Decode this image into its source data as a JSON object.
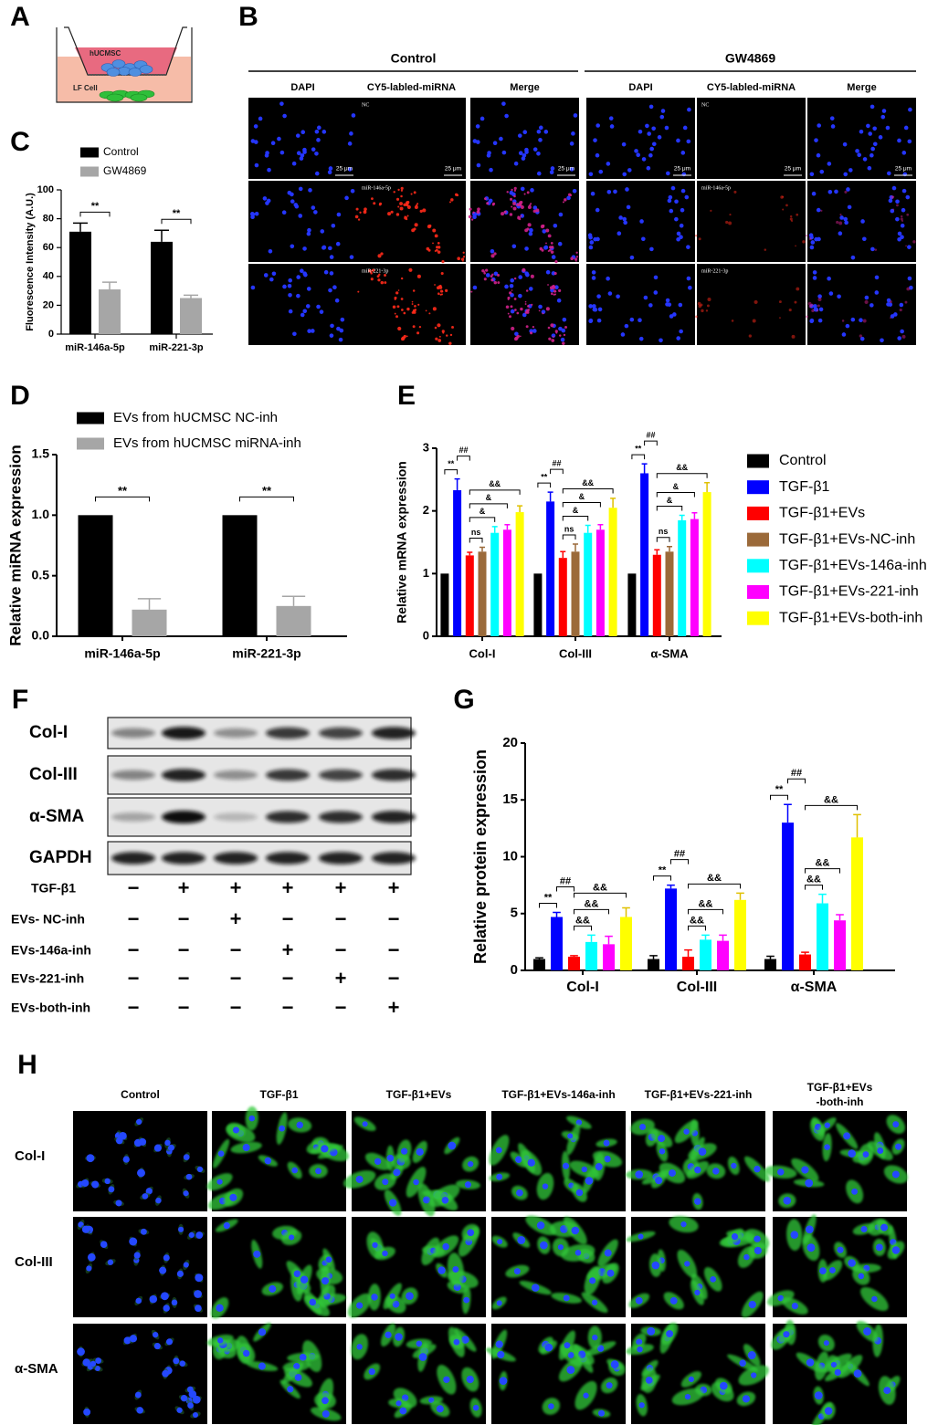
{
  "panel_labels": [
    "A",
    "B",
    "C",
    "D",
    "E",
    "F",
    "G",
    "H"
  ],
  "A": {
    "top_label": "hUCMSC",
    "bottom_label": "LF Cell"
  },
  "B": {
    "groups": [
      {
        "title": "Control",
        "columns": [
          "DAPI",
          "CY5-labled-miRNA",
          "Merge"
        ],
        "rows": [
          "NC",
          "miR-146a-5p",
          "miR-221-3p"
        ]
      },
      {
        "title": "GW4869",
        "columns": [
          "DAPI",
          "CY5-labled-miRNA",
          "Merge"
        ],
        "rows": [
          "NC",
          "miR-146a-5p",
          "miR-221-3p"
        ]
      }
    ],
    "scale_bar": "25 μm"
  },
  "F": {
    "blots": [
      "Col-I",
      "Col-III",
      "α-SMA",
      "GAPDH"
    ],
    "treatments": [
      {
        "label": "TGF-β1",
        "signs": [
          "−",
          "+",
          "+",
          "+",
          "+",
          "+"
        ]
      },
      {
        "label": "EVs- NC-inh",
        "signs": [
          "−",
          "−",
          "+",
          "−",
          "−",
          "−"
        ]
      },
      {
        "label": "EVs-146a-inh",
        "signs": [
          "−",
          "−",
          "−",
          "+",
          "−",
          "−"
        ]
      },
      {
        "label": "EVs-221-inh",
        "signs": [
          "−",
          "−",
          "−",
          "−",
          "+",
          "−"
        ]
      },
      {
        "label": "EVs-both-inh",
        "signs": [
          "−",
          "−",
          "−",
          "−",
          "−",
          "+"
        ]
      }
    ]
  },
  "H": {
    "columns": [
      [
        "Control"
      ],
      [
        "TGF-β1"
      ],
      [
        "TGF-β1+EVs"
      ],
      [
        "TGF-β1+EVs-146a-inh"
      ],
      [
        "TGF-β1+EVs-221-inh"
      ],
      [
        "TGF-β1+EVs",
        "-both-inh"
      ]
    ],
    "rows": [
      "Col-I",
      "Col-III",
      "α-SMA"
    ]
  },
  "chart_data": [
    {
      "type": "bar",
      "y_label": "Fluorescence Intensity (A.U.)",
      "categories": [
        "miR-146a-5p",
        "miR-221-3p"
      ],
      "series": [
        {
          "name": "Control",
          "color": "#000000",
          "values": [
            71,
            64
          ],
          "errors": [
            6,
            8
          ]
        },
        {
          "name": "GW4869",
          "color": "#a6a6a6",
          "values": [
            31,
            25
          ],
          "errors": [
            5,
            2
          ]
        }
      ],
      "ylim": [
        0,
        100
      ],
      "yticks": [
        0,
        20,
        40,
        60,
        80,
        100
      ],
      "significance": [
        [
          "**"
        ],
        [
          "**"
        ]
      ]
    },
    {
      "type": "bar",
      "y_label": "Relative miRNA expression",
      "categories": [
        "miR-146a-5p",
        "miR-221-3p"
      ],
      "series": [
        {
          "name": "EVs from hUCMSC NC-inh",
          "color": "#000000",
          "values": [
            1.0,
            1.0
          ]
        },
        {
          "name": "EVs from hUCMSC miRNA-inh",
          "color": "#a6a6a6",
          "values": [
            0.22,
            0.25
          ],
          "errors": [
            0.09,
            0.08
          ]
        }
      ],
      "ylim": [
        0,
        1.5
      ],
      "yticks": [
        {
          "value": 0,
          "label": "0.0"
        },
        0.5,
        {
          "value": 1,
          "label": "1.0"
        },
        1.5
      ],
      "significance": [
        [
          "**"
        ],
        [
          "**"
        ]
      ]
    },
    {
      "type": "bar",
      "y_label": "Relative mRNA expression",
      "categories": [
        "Col-I",
        "Col-III",
        "α-SMA"
      ],
      "series": [
        {
          "name": "Control",
          "color": "#000000",
          "values": [
            1,
            1,
            1
          ]
        },
        {
          "name": "TGF-β1",
          "color": "#0000ff",
          "values": [
            2.33,
            2.15,
            2.6
          ],
          "errors": [
            0.18,
            0.15,
            0.15
          ]
        },
        {
          "name": "TGF-β1+EVs",
          "color": "#ff0000",
          "values": [
            1.29,
            1.25,
            1.3
          ],
          "errors": [
            0.05,
            0.1,
            0.08
          ]
        },
        {
          "name": "TGF-β1+EVs-NC-inh",
          "color": "#9b6a3a",
          "values": [
            1.35,
            1.35,
            1.35
          ],
          "errors": [
            0.07,
            0.12,
            0.08
          ]
        },
        {
          "name": "TGF-β1+EVs-146a-inh",
          "color": "#00ffff",
          "values": [
            1.65,
            1.65,
            1.85
          ],
          "errors": [
            0.1,
            0.12,
            0.08
          ]
        },
        {
          "name": "TGF-β1+EVs-221-inh",
          "color": "#ff00ff",
          "values": [
            1.7,
            1.7,
            1.87
          ],
          "errors": [
            0.08,
            0.08,
            0.1
          ]
        },
        {
          "name": "TGF-β1+EVs-both-inh",
          "color": "#ffff00",
          "values": [
            1.98,
            2.05,
            2.3
          ],
          "errors": [
            0.1,
            0.15,
            0.15
          ]
        }
      ],
      "ylim": [
        0,
        3
      ],
      "yticks": [
        0,
        1,
        2,
        3
      ],
      "significance": [
        [
          "**",
          "##",
          "ns",
          "&",
          "&",
          "&&"
        ],
        [
          "**",
          "##",
          "ns",
          "&",
          "&",
          "&&"
        ],
        [
          "**",
          "##",
          "ns",
          "&",
          "&",
          "&&"
        ]
      ]
    },
    {
      "type": "bar",
      "y_label": "Relative protein expression",
      "categories": [
        "Col-I",
        "Col-III",
        "α-SMA"
      ],
      "series": [
        {
          "color": "#000000",
          "values": [
            1,
            1,
            1
          ],
          "errors": [
            0.1,
            0.3,
            0.25
          ]
        },
        {
          "color": "#0000ff",
          "values": [
            4.7,
            7.2,
            13.0
          ],
          "errors": [
            0.4,
            0.3,
            1.6
          ]
        },
        {
          "color": "#ff0000",
          "values": [
            1.2,
            1.2,
            1.4
          ],
          "errors": [
            0.1,
            0.6,
            0.2
          ]
        },
        {
          "color": "#00ffff",
          "values": [
            2.5,
            2.7,
            5.9
          ],
          "errors": [
            0.6,
            0.4,
            0.8
          ]
        },
        {
          "color": "#ff00ff",
          "values": [
            2.3,
            2.6,
            4.4
          ],
          "errors": [
            0.7,
            0.5,
            0.5
          ]
        },
        {
          "color": "#ffff00",
          "values": [
            4.7,
            6.2,
            11.7
          ],
          "errors": [
            0.8,
            0.6,
            2.0
          ]
        }
      ],
      "ylim": [
        0,
        20
      ],
      "yticks": [
        0,
        5,
        10,
        15,
        20
      ],
      "significance": [
        [
          "**",
          "##",
          "&&",
          "&&",
          "&&"
        ],
        [
          "**",
          "##",
          "&&",
          "&&",
          "&&"
        ],
        [
          "**",
          "##",
          "&&",
          "&&",
          "&&"
        ]
      ]
    }
  ]
}
